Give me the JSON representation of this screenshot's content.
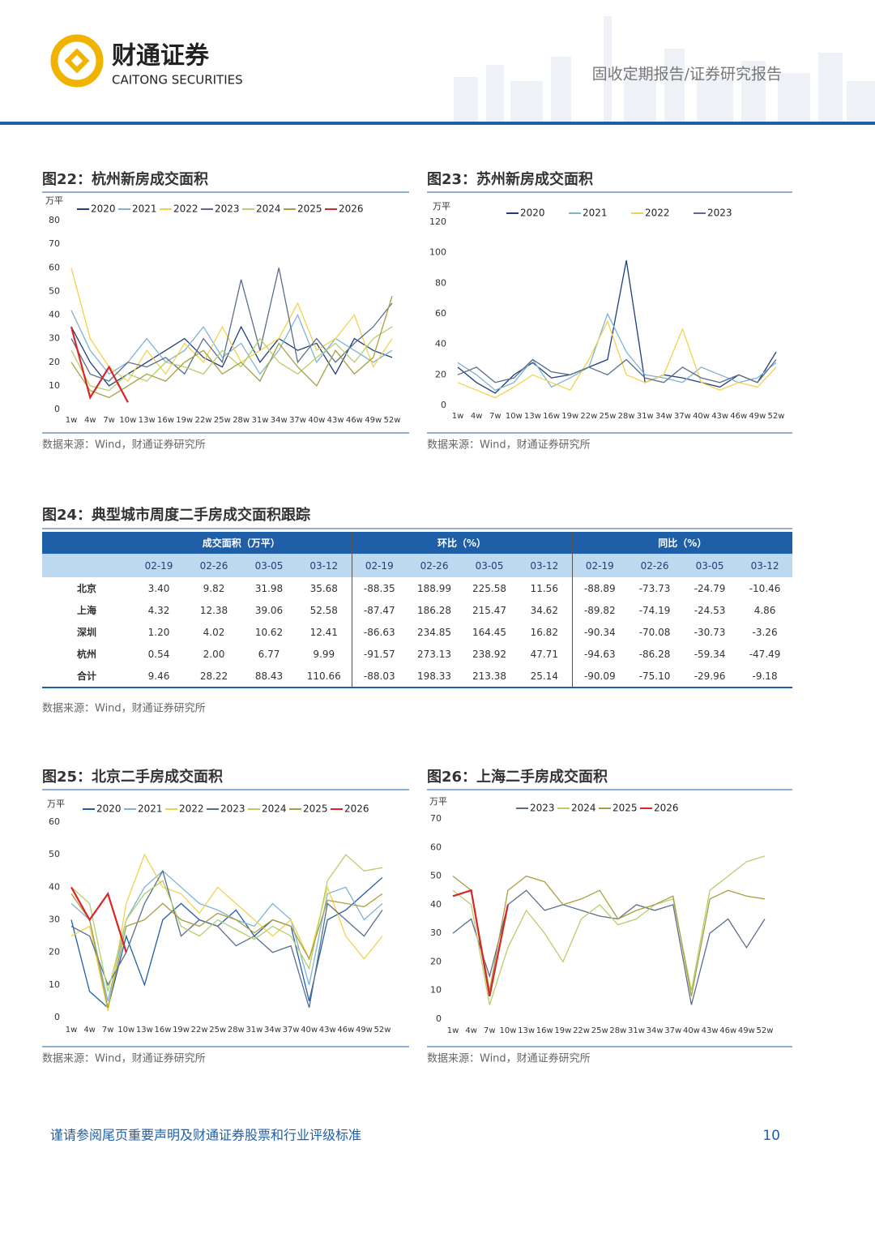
{
  "header": {
    "logo_cn": "财通证券",
    "logo_en": "CAITONG SECURITIES",
    "report_type": "固收定期报告/证券研究报告"
  },
  "chart_data": [
    {
      "type": "line",
      "title": "图22：杭州新房成交面积",
      "y_label": "万平",
      "categories": [
        "1w",
        "4w",
        "7w",
        "10w",
        "13w",
        "16w",
        "19w",
        "22w",
        "25w",
        "28w",
        "31w",
        "34w",
        "37w",
        "40w",
        "43w",
        "46w",
        "49w",
        "52w"
      ],
      "ylim": [
        0,
        80
      ],
      "yticks": [
        0,
        10,
        20,
        30,
        40,
        50,
        60,
        70,
        80
      ],
      "series": [
        {
          "name": "2020",
          "color": "#1f3f7a",
          "values": [
            35,
            20,
            10,
            15,
            20,
            25,
            30,
            22,
            18,
            35,
            20,
            30,
            25,
            28,
            15,
            30,
            25,
            22
          ]
        },
        {
          "name": "2021",
          "color": "#7fb3d5",
          "values": [
            42,
            25,
            15,
            20,
            30,
            20,
            25,
            35,
            22,
            28,
            15,
            25,
            40,
            20,
            30,
            25,
            20,
            25
          ]
        },
        {
          "name": "2022",
          "color": "#f2d24b",
          "values": [
            60,
            30,
            18,
            12,
            25,
            15,
            28,
            20,
            35,
            20,
            25,
            30,
            45,
            25,
            30,
            40,
            18,
            30
          ]
        },
        {
          "name": "2023",
          "color": "#5a6e8c",
          "values": [
            30,
            15,
            12,
            20,
            18,
            22,
            15,
            30,
            20,
            55,
            25,
            60,
            20,
            30,
            20,
            28,
            35,
            45
          ]
        },
        {
          "name": "2024",
          "color": "#b5cf6b",
          "values": [
            25,
            10,
            8,
            15,
            12,
            20,
            18,
            15,
            25,
            18,
            30,
            20,
            15,
            22,
            28,
            20,
            30,
            35
          ]
        },
        {
          "name": "2025",
          "color": "#a8a040",
          "values": [
            20,
            8,
            5,
            10,
            15,
            12,
            20,
            25,
            15,
            20,
            12,
            28,
            18,
            10,
            25,
            15,
            22,
            48
          ]
        },
        {
          "name": "2026",
          "color": "#d62728",
          "values": [
            35,
            5,
            18,
            3,
            null,
            null,
            null,
            null,
            null,
            null,
            null,
            null,
            null,
            null,
            null,
            null,
            null,
            null
          ]
        }
      ],
      "source": "数据来源：Wind，财通证券研究所"
    },
    {
      "type": "line",
      "title": "图23：苏州新房成交面积",
      "y_label": "万平",
      "categories": [
        "1w",
        "4w",
        "7w",
        "10w",
        "13w",
        "16w",
        "19w",
        "22w",
        "25w",
        "28w",
        "31w",
        "34w",
        "37w",
        "40w",
        "43w",
        "46w",
        "49w",
        "52w"
      ],
      "ylim": [
        0,
        120
      ],
      "yticks": [
        0,
        20,
        40,
        60,
        80,
        100,
        120
      ],
      "series": [
        {
          "name": "2020",
          "color": "#1f3f7a",
          "values": [
            25,
            15,
            8,
            20,
            28,
            18,
            20,
            25,
            30,
            95,
            15,
            20,
            18,
            15,
            12,
            20,
            15,
            35
          ]
        },
        {
          "name": "2021",
          "color": "#7fb3d5",
          "values": [
            28,
            20,
            10,
            15,
            30,
            12,
            18,
            25,
            60,
            35,
            20,
            18,
            15,
            25,
            20,
            15,
            18,
            28
          ]
        },
        {
          "name": "2022",
          "color": "#f2d24b",
          "values": [
            15,
            10,
            5,
            12,
            20,
            15,
            10,
            30,
            55,
            20,
            15,
            20,
            50,
            15,
            10,
            15,
            12,
            25
          ]
        },
        {
          "name": "2023",
          "color": "#5a6e8c",
          "values": [
            20,
            25,
            15,
            18,
            30,
            22,
            20,
            25,
            20,
            30,
            18,
            15,
            25,
            18,
            15,
            20,
            15,
            30
          ]
        }
      ],
      "source": "数据来源：Wind，财通证券研究所"
    },
    {
      "type": "line",
      "title": "图25：北京二手房成交面积",
      "y_label": "万平",
      "categories": [
        "1w",
        "4w",
        "7w",
        "10w",
        "13w",
        "16w",
        "19w",
        "22w",
        "25w",
        "28w",
        "31w",
        "34w",
        "37w",
        "40w",
        "43w",
        "46w",
        "49w",
        "52w"
      ],
      "ylim": [
        0,
        60
      ],
      "yticks": [
        0,
        10,
        20,
        30,
        40,
        50,
        60
      ],
      "series": [
        {
          "name": "2020",
          "color": "#1f5fa8",
          "values": [
            30,
            8,
            3,
            25,
            10,
            30,
            35,
            30,
            28,
            33,
            25,
            30,
            28,
            5,
            30,
            33,
            38,
            43
          ]
        },
        {
          "name": "2021",
          "color": "#7fb3d5",
          "values": [
            35,
            30,
            5,
            30,
            40,
            45,
            40,
            35,
            33,
            30,
            28,
            35,
            30,
            10,
            38,
            40,
            30,
            35
          ]
        },
        {
          "name": "2022",
          "color": "#f2d24b",
          "values": [
            25,
            28,
            2,
            35,
            50,
            40,
            38,
            32,
            40,
            35,
            30,
            25,
            30,
            18,
            40,
            25,
            18,
            25
          ]
        },
        {
          "name": "2023",
          "color": "#5a6e8c",
          "values": [
            28,
            25,
            10,
            20,
            35,
            45,
            25,
            30,
            28,
            22,
            25,
            20,
            22,
            3,
            35,
            30,
            25,
            33
          ]
        },
        {
          "name": "2024",
          "color": "#b5cf6b",
          "values": [
            40,
            35,
            8,
            30,
            38,
            42,
            28,
            25,
            30,
            27,
            24,
            28,
            25,
            15,
            42,
            50,
            45,
            46
          ]
        },
        {
          "name": "2025",
          "color": "#a8a040",
          "values": [
            38,
            30,
            3,
            28,
            30,
            35,
            30,
            28,
            32,
            30,
            26,
            30,
            28,
            18,
            36,
            35,
            34,
            38
          ]
        },
        {
          "name": "2026",
          "color": "#d62728",
          "values": [
            40,
            30,
            38,
            20,
            null,
            null,
            null,
            null,
            null,
            null,
            null,
            null,
            null,
            null,
            null,
            null,
            null,
            null
          ]
        }
      ],
      "source": "数据来源：Wind，财通证券研究所"
    },
    {
      "type": "line",
      "title": "图26：上海二手房成交面积",
      "y_label": "万平",
      "categories": [
        "1w",
        "4w",
        "7w",
        "10w",
        "13w",
        "16w",
        "19w",
        "22w",
        "25w",
        "28w",
        "31w",
        "34w",
        "37w",
        "40w",
        "43w",
        "46w",
        "49w",
        "52w"
      ],
      "ylim": [
        0,
        70
      ],
      "yticks": [
        0,
        10,
        20,
        30,
        40,
        50,
        60,
        70
      ],
      "series": [
        {
          "name": "2023",
          "color": "#5a6e8c",
          "values": [
            30,
            35,
            15,
            40,
            45,
            38,
            40,
            38,
            36,
            35,
            40,
            38,
            40,
            5,
            30,
            35,
            25,
            35
          ]
        },
        {
          "name": "2024",
          "color": "#b5cf6b",
          "values": [
            45,
            40,
            5,
            25,
            38,
            30,
            20,
            35,
            40,
            33,
            35,
            40,
            42,
            10,
            45,
            50,
            55,
            57
          ]
        },
        {
          "name": "2025",
          "color": "#a8a040",
          "values": [
            50,
            45,
            10,
            45,
            50,
            48,
            40,
            42,
            45,
            35,
            38,
            40,
            43,
            8,
            42,
            45,
            43,
            42
          ]
        },
        {
          "name": "2026",
          "color": "#d62728",
          "values": [
            43,
            45,
            8,
            40,
            null,
            null,
            null,
            null,
            null,
            null,
            null,
            null,
            null,
            null,
            null,
            null,
            null,
            null
          ]
        }
      ],
      "source": "数据来源：Wind，财通证券研究所"
    }
  ],
  "table": {
    "title": "图24：典型城市周度二手房成交面积跟踪",
    "groups": [
      "成交面积（万平）",
      "环比（%）",
      "同比（%）"
    ],
    "columns": [
      "02-19",
      "02-26",
      "03-05",
      "03-12",
      "02-19",
      "02-26",
      "03-05",
      "03-12",
      "02-19",
      "02-26",
      "03-05",
      "03-12"
    ],
    "rows": [
      {
        "city": "北京",
        "values": [
          "3.40",
          "9.82",
          "31.98",
          "35.68",
          "-88.35",
          "188.99",
          "225.58",
          "11.56",
          "-88.89",
          "-73.73",
          "-24.79",
          "-10.46"
        ]
      },
      {
        "city": "上海",
        "values": [
          "4.32",
          "12.38",
          "39.06",
          "52.58",
          "-87.47",
          "186.28",
          "215.47",
          "34.62",
          "-89.82",
          "-74.19",
          "-24.53",
          "4.86"
        ]
      },
      {
        "city": "深圳",
        "values": [
          "1.20",
          "4.02",
          "10.62",
          "12.41",
          "-86.63",
          "234.85",
          "164.45",
          "16.82",
          "-90.34",
          "-70.08",
          "-30.73",
          "-3.26"
        ]
      },
      {
        "city": "杭州",
        "values": [
          "0.54",
          "2.00",
          "6.77",
          "9.99",
          "-91.57",
          "273.13",
          "238.92",
          "47.71",
          "-94.63",
          "-86.28",
          "-59.34",
          "-47.49"
        ]
      },
      {
        "city": "合计",
        "values": [
          "9.46",
          "28.22",
          "88.43",
          "110.66",
          "-88.03",
          "198.33",
          "213.38",
          "25.14",
          "-90.09",
          "-75.10",
          "-29.96",
          "-9.18"
        ]
      }
    ],
    "source": "数据来源：Wind，财通证券研究所"
  },
  "footer": {
    "disclaimer": "谨请参阅尾页重要声明及财通证券股票和行业评级标准",
    "page": 10
  }
}
